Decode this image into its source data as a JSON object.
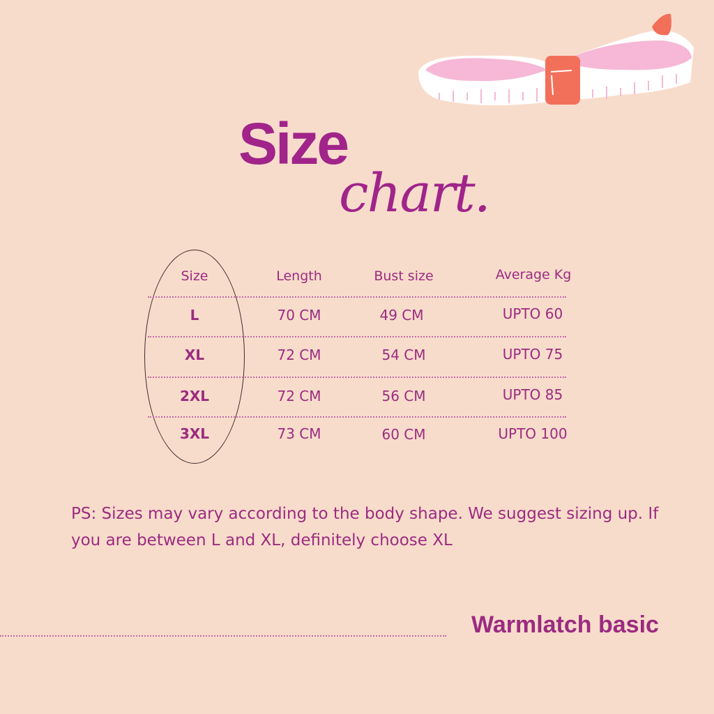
{
  "title": {
    "line1": "Size",
    "line2": "chart."
  },
  "table": {
    "headers": [
      "Size",
      "Length",
      "Bust size",
      "Average Kg"
    ],
    "rows": [
      [
        "L",
        "70 CM",
        "49 CM",
        "UPTO 60"
      ],
      [
        "XL",
        "72 CM",
        "54 CM",
        "UPTO 75"
      ],
      [
        "2XL",
        "72 CM",
        "56 CM",
        "UPTO 85"
      ],
      [
        "3XL",
        "73 CM",
        "60 CM",
        "UPTO 100"
      ]
    ]
  },
  "note": "PS: Sizes may vary according to the body shape. We suggest sizing up. If you are between L and XL, definitely choose XL",
  "brand": "Warmlatch basic",
  "colors": {
    "background": "#f8dccb",
    "text": "#9b2b80",
    "tape_pink": "#f6b8d6",
    "tape_clip": "#f2705a"
  },
  "icons": [
    "measuring-tape-illustration"
  ]
}
